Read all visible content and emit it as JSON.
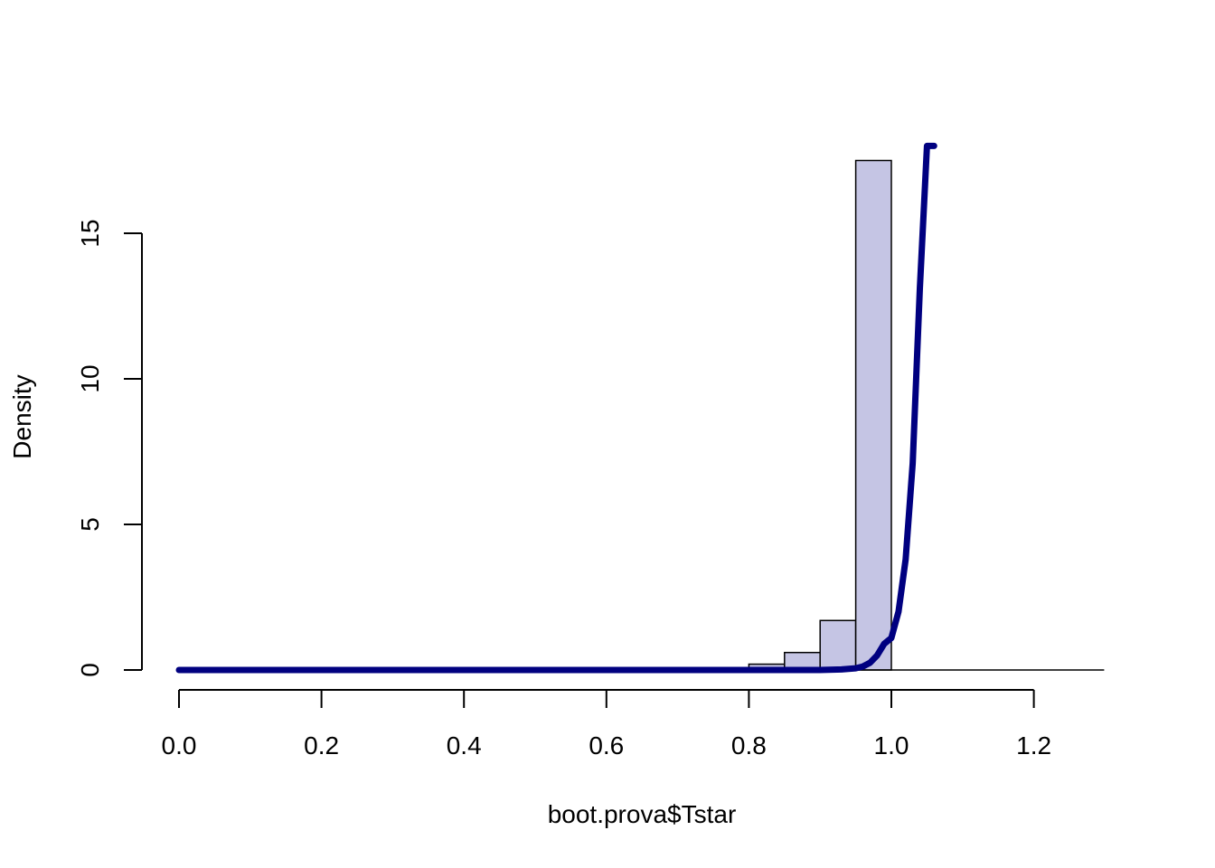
{
  "chart_data": {
    "type": "histogram",
    "title": "",
    "xlabel": "boot.prova$Tstar",
    "ylabel": "Density",
    "xlim": [
      0,
      1.3
    ],
    "ylim": [
      0,
      18
    ],
    "x_ticks": [
      "0.0",
      "0.2",
      "0.4",
      "0.6",
      "0.8",
      "1.0",
      "1.2"
    ],
    "y_ticks": [
      "0",
      "5",
      "10",
      "15"
    ],
    "grid": false,
    "legend": "none",
    "bars": [
      {
        "x0": 0.8,
        "x1": 0.85,
        "density": 0.2
      },
      {
        "x0": 0.85,
        "x1": 0.9,
        "density": 0.6
      },
      {
        "x0": 0.9,
        "x1": 0.95,
        "density": 1.7
      },
      {
        "x0": 0.95,
        "x1": 1.0,
        "density": 17.5
      },
      {
        "x0": 1.0,
        "x1": 1.05,
        "density": 0
      },
      {
        "x0": 1.05,
        "x1": 1.1,
        "density": 0
      },
      {
        "x0": 1.1,
        "x1": 1.15,
        "density": 0
      },
      {
        "x0": 1.15,
        "x1": 1.2,
        "density": 0
      },
      {
        "x0": 1.2,
        "x1": 1.25,
        "density": 0
      },
      {
        "x0": 1.25,
        "x1": 1.3,
        "density": 0
      }
    ],
    "series": [
      {
        "name": "",
        "type": "line",
        "x": [
          0.0,
          0.8,
          0.9,
          0.93,
          0.95,
          0.96,
          0.97,
          0.98,
          0.99,
          1.0,
          1.01,
          1.02,
          1.03,
          1.04,
          1.05,
          1.06
        ],
        "y": [
          0.0,
          0.0,
          0.0,
          0.02,
          0.06,
          0.12,
          0.25,
          0.5,
          0.9,
          1.1,
          2.0,
          3.8,
          7.1,
          13.1,
          18.0,
          18.0
        ]
      }
    ],
    "colors": {
      "bar_fill": "#c5c5e4",
      "bar_stroke": "#000000",
      "line": "#000080",
      "axis": "#000000"
    }
  }
}
